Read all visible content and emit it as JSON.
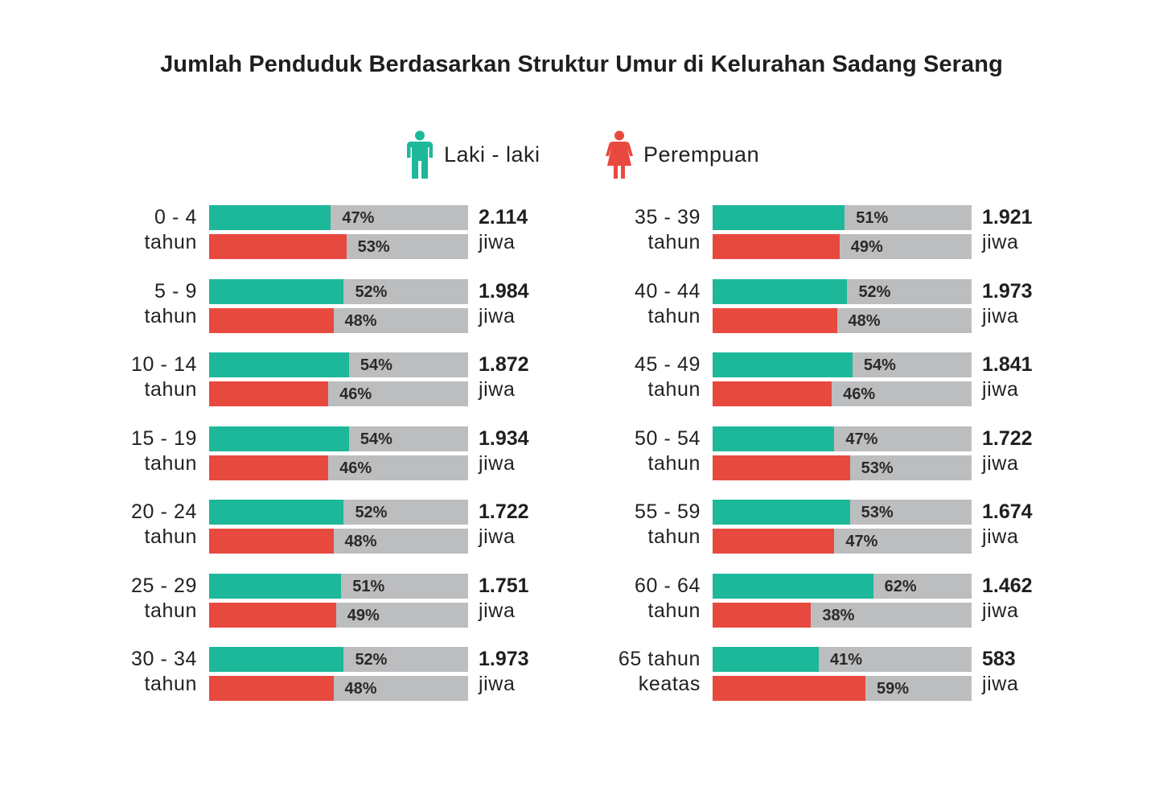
{
  "colors": {
    "male": "#1db899",
    "female": "#e8493f",
    "track": "#bcbdbf"
  },
  "chart_data": {
    "type": "bar",
    "title": "Jumlah Penduduk Berdasarkan Struktur Umur di Kelurahan Sadang Serang",
    "legend": [
      {
        "name": "Laki - laki",
        "icon": "male-person-icon",
        "color": "#1db899"
      },
      {
        "name": "Perempuan",
        "icon": "female-person-icon",
        "color": "#e8493f"
      }
    ],
    "groups": [
      {
        "age_line1": "0 - 4",
        "age_line2": "tahun",
        "male_pct": 47,
        "female_pct": 53,
        "total": "2.114",
        "unit": "jiwa"
      },
      {
        "age_line1": "5 - 9",
        "age_line2": "tahun",
        "male_pct": 52,
        "female_pct": 48,
        "total": "1.984",
        "unit": "jiwa"
      },
      {
        "age_line1": "10 - 14",
        "age_line2": "tahun",
        "male_pct": 54,
        "female_pct": 46,
        "total": "1.872",
        "unit": "jiwa"
      },
      {
        "age_line1": "15 - 19",
        "age_line2": "tahun",
        "male_pct": 54,
        "female_pct": 46,
        "total": "1.934",
        "unit": "jiwa"
      },
      {
        "age_line1": "20 - 24",
        "age_line2": "tahun",
        "male_pct": 52,
        "female_pct": 48,
        "total": "1.722",
        "unit": "jiwa"
      },
      {
        "age_line1": "25 - 29",
        "age_line2": "tahun",
        "male_pct": 51,
        "female_pct": 49,
        "total": "1.751",
        "unit": "jiwa"
      },
      {
        "age_line1": "30 - 34",
        "age_line2": "tahun",
        "male_pct": 52,
        "female_pct": 48,
        "total": "1.973",
        "unit": "jiwa"
      },
      {
        "age_line1": "35 - 39",
        "age_line2": "tahun",
        "male_pct": 51,
        "female_pct": 49,
        "total": "1.921",
        "unit": "jiwa"
      },
      {
        "age_line1": "40 - 44",
        "age_line2": "tahun",
        "male_pct": 52,
        "female_pct": 48,
        "total": "1.973",
        "unit": "jiwa"
      },
      {
        "age_line1": "45 - 49",
        "age_line2": "tahun",
        "male_pct": 54,
        "female_pct": 46,
        "total": "1.841",
        "unit": "jiwa"
      },
      {
        "age_line1": "50 - 54",
        "age_line2": "tahun",
        "male_pct": 47,
        "female_pct": 53,
        "total": "1.722",
        "unit": "jiwa"
      },
      {
        "age_line1": "55 - 59",
        "age_line2": "tahun",
        "male_pct": 53,
        "female_pct": 47,
        "total": "1.674",
        "unit": "jiwa"
      },
      {
        "age_line1": "60 - 64",
        "age_line2": "tahun",
        "male_pct": 62,
        "female_pct": 38,
        "total": "1.462",
        "unit": "jiwa"
      },
      {
        "age_line1": "65 tahun",
        "age_line2": "keatas",
        "male_pct": 41,
        "female_pct": 59,
        "total": "583",
        "unit": "jiwa"
      }
    ]
  }
}
